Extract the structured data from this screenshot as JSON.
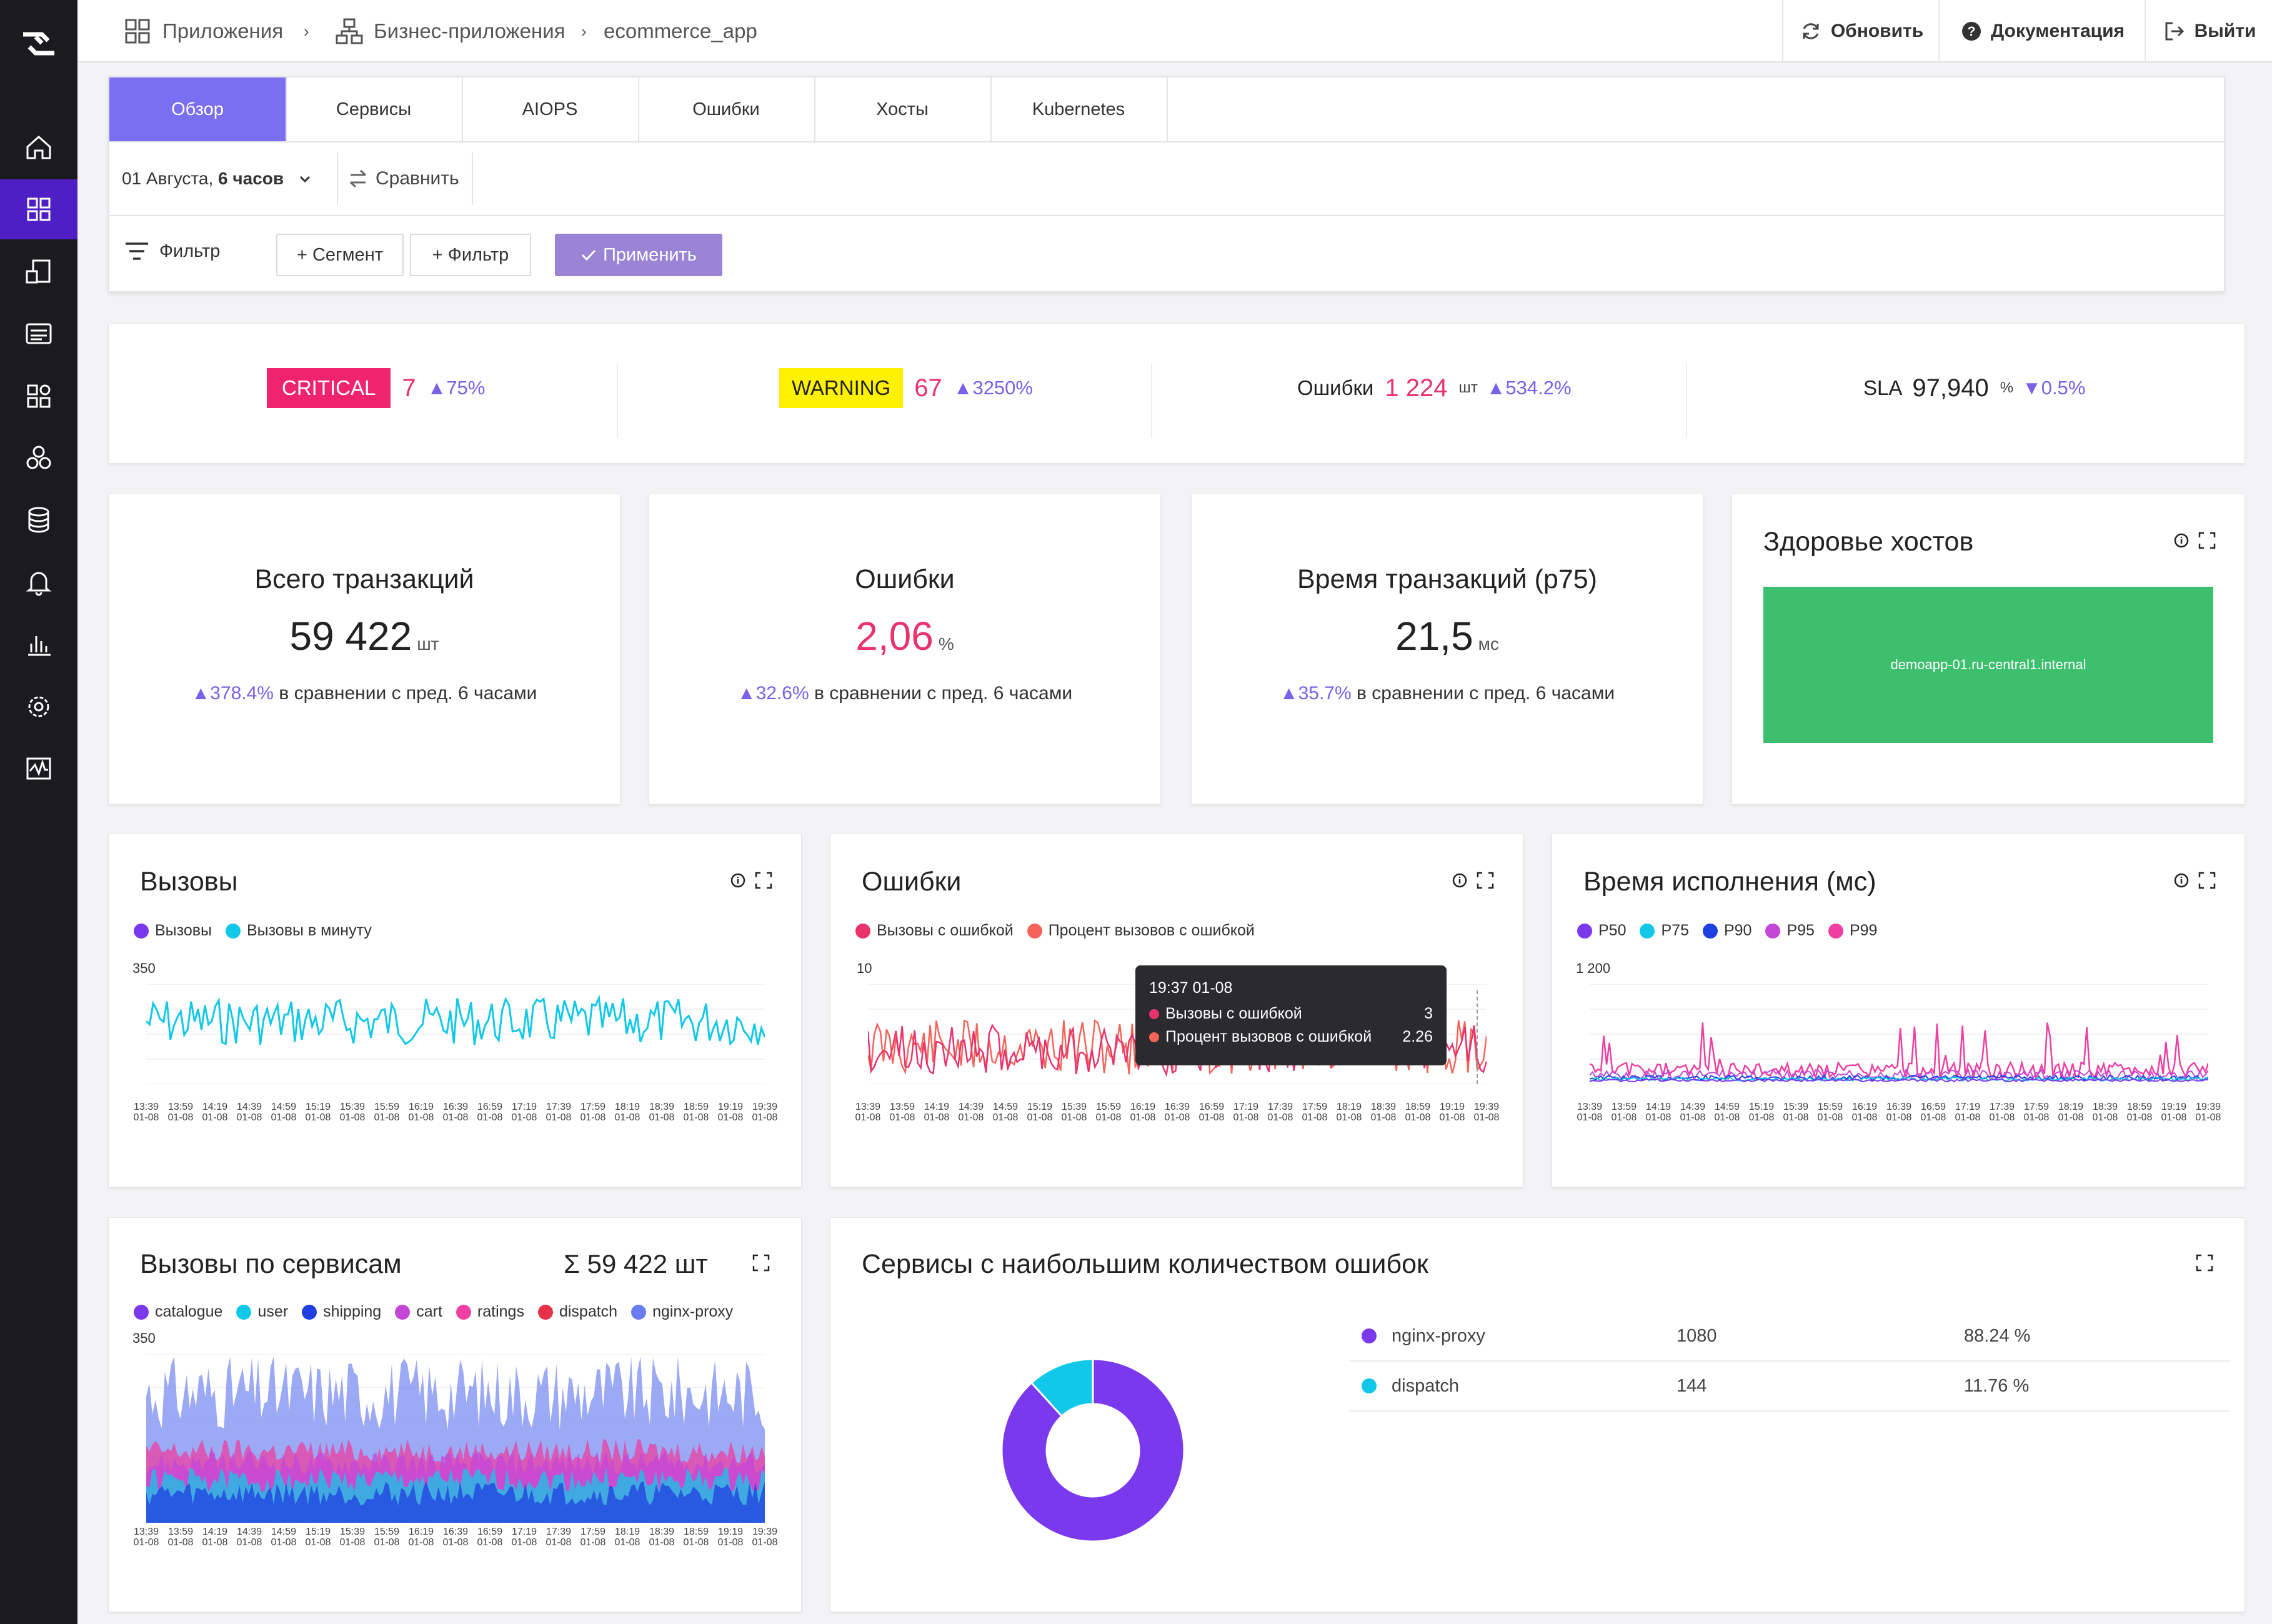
{
  "colors": {
    "accent": "#7a6ff0",
    "nav_active": "#4f1fc6",
    "critical": "#f0246e",
    "warning": "#fff200",
    "error_pink": "#e8336d",
    "up": "#7b61e8",
    "host_green": "#3dbf6e",
    "cyan": "#11c8e8",
    "purple": "#7b39ed"
  },
  "breadcrumb": {
    "apps": "Приложения",
    "business": "Бизнес-приложения",
    "current": "ecommerce_app"
  },
  "top_actions": {
    "refresh": "Обновить",
    "docs": "Документация",
    "logout": "Выйти"
  },
  "tabs": [
    "Обзор",
    "Сервисы",
    "AIOPS",
    "Ошибки",
    "Хосты",
    "Kubernetes"
  ],
  "timerange": {
    "date": "01 Августа,",
    "span": "6 часов",
    "compare": "Сравнить"
  },
  "filters": {
    "label": "Фильтр",
    "segment": "+ Сегмент",
    "filter": "+ Фильтр",
    "apply": "Применить"
  },
  "status": {
    "critical": {
      "label": "CRITICAL",
      "count": "7",
      "delta": "75%"
    },
    "warning": {
      "label": "WARNING",
      "count": "67",
      "delta": "3250%"
    },
    "errors": {
      "label": "Ошибки",
      "count": "1 224",
      "unit": "шт",
      "delta": "534.2%"
    },
    "sla": {
      "label": "SLA",
      "value": "97,940",
      "unit": "%",
      "delta": "0.5%"
    }
  },
  "kpis": {
    "transactions": {
      "title": "Всего транзакций",
      "value": "59 422",
      "unit": "шт",
      "delta": "378.4%",
      "cmp": "в сравнении с пред. 6 часами"
    },
    "errors": {
      "title": "Ошибки",
      "value": "2,06",
      "unit": "%",
      "delta": "32.6%",
      "cmp": "в сравнении с пред. 6 часами"
    },
    "latency": {
      "title": "Время транзакций (p75)",
      "value": "21,5",
      "unit": "мс",
      "delta": "35.7%",
      "cmp": "в сравнении с пред. 6 часами"
    }
  },
  "hosts": {
    "title": "Здоровье хостов",
    "host": "demoapp-01.ru-central1.internal"
  },
  "time_ticks": [
    "13:39",
    "13:59",
    "14:19",
    "14:39",
    "14:59",
    "15:19",
    "15:39",
    "15:59",
    "16:19",
    "16:39",
    "16:59",
    "17:19",
    "17:39",
    "17:59",
    "18:19",
    "18:39",
    "18:59",
    "19:19",
    "19:39"
  ],
  "tick_date": "01-08",
  "calls_chart": {
    "title": "Вызовы",
    "legend": [
      "Вызовы",
      "Вызовы в минуту"
    ],
    "ymax_label": "350"
  },
  "errors_chart": {
    "title": "Ошибки",
    "legend": [
      "Вызовы с ошибкой",
      "Процент вызовов с ошибкой"
    ],
    "ymax_label": "10",
    "tooltip": {
      "time": "19:37 01-08",
      "row1_label": "Вызовы с ошибкой",
      "row1_value": "3",
      "row2_label": "Процент вызовов с ошибкой",
      "row2_value": "2.26"
    }
  },
  "latency_chart": {
    "title": "Время исполнения (мс)",
    "legend": [
      "P50",
      "P75",
      "P90",
      "P95",
      "P99"
    ],
    "ymax_label": "1 200"
  },
  "services_chart": {
    "title": "Вызовы по сервисам",
    "total": "Σ 59 422 шт",
    "legend": [
      "catalogue",
      "user",
      "shipping",
      "cart",
      "ratings",
      "dispatch",
      "nginx-proxy"
    ],
    "ymax_label": "350"
  },
  "top_errors": {
    "title": "Сервисы с наибольшим количеством ошибок",
    "rows": [
      {
        "name": "nginx-proxy",
        "count": "1080",
        "pct": "88.24 %"
      },
      {
        "name": "dispatch",
        "count": "144",
        "pct": "11.76 %"
      }
    ]
  },
  "chart_data": [
    {
      "type": "pie",
      "title": "Сервисы с наибольшим количеством ошибок",
      "categories": [
        "nginx-proxy",
        "dispatch"
      ],
      "values": [
        88.24,
        11.76
      ]
    }
  ]
}
